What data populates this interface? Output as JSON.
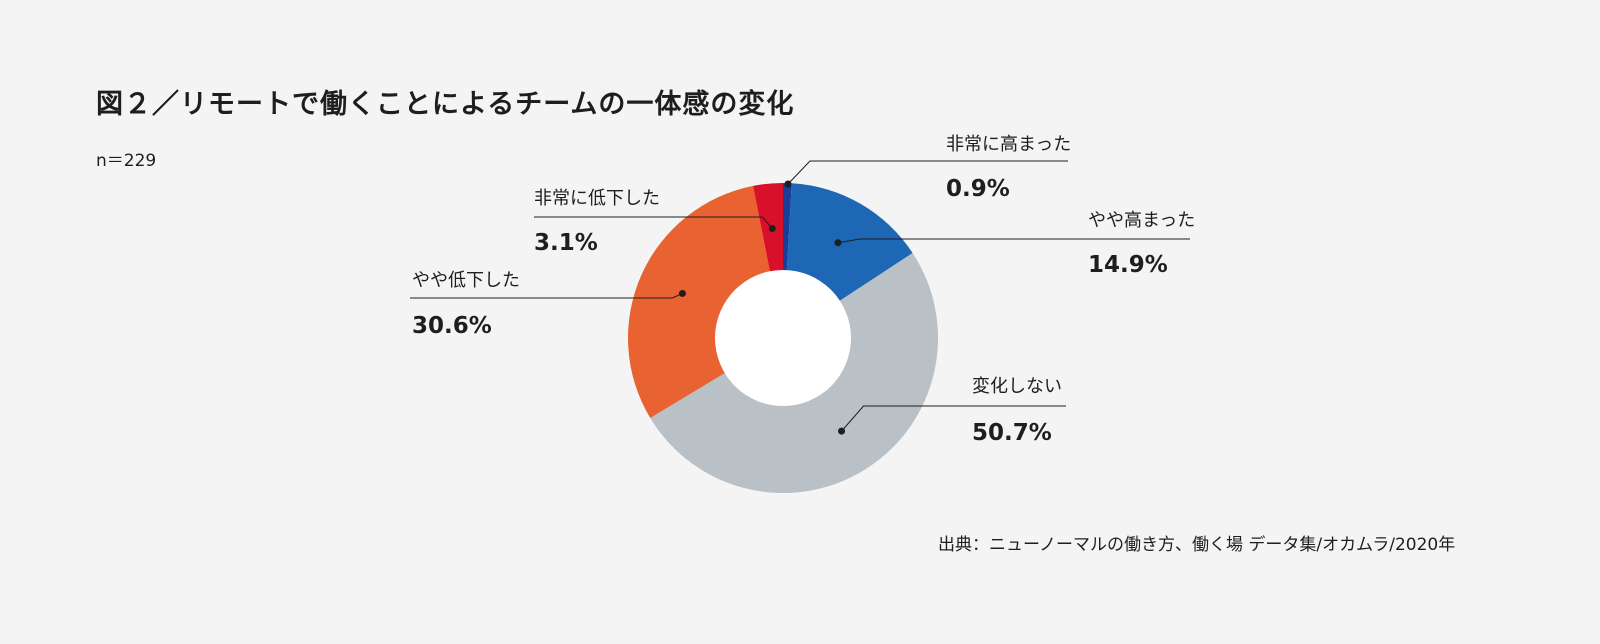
{
  "title": "図２／リモートで働くことによるチームの一体感の変化",
  "sample_size": "n＝229",
  "source": "出典：ニューノーマルの働き方、働く場 データ集/オカムラ/2020年",
  "colors": {
    "非常に高まった": "#1b3d9a",
    "やや高まった": "#1e67b4",
    "変化しない": "#b9c1c7",
    "やや低下した": "#e96231",
    "非常に低下した": "#d8102a",
    "hole": "#ffffff",
    "leader": "#1e1e1e"
  },
  "chart_data": {
    "type": "pie",
    "donut": true,
    "start": "12 o'clock",
    "direction": "clockwise",
    "title": "図２／リモートで働くことによるチームの一体感の変化",
    "slices": [
      {
        "label": "非常に高まった",
        "value": 0.9,
        "value_label": "0.9%",
        "label_side": "right"
      },
      {
        "label": "やや高まった",
        "value": 14.9,
        "value_label": "14.9%",
        "label_side": "right"
      },
      {
        "label": "変化しない",
        "value": 50.7,
        "value_label": "50.7%",
        "label_side": "right"
      },
      {
        "label": "やや低下した",
        "value": 30.6,
        "value_label": "30.6%",
        "label_side": "left"
      },
      {
        "label": "非常に低下した",
        "value": 3.1,
        "value_label": "3.1%",
        "label_side": "left"
      }
    ]
  }
}
